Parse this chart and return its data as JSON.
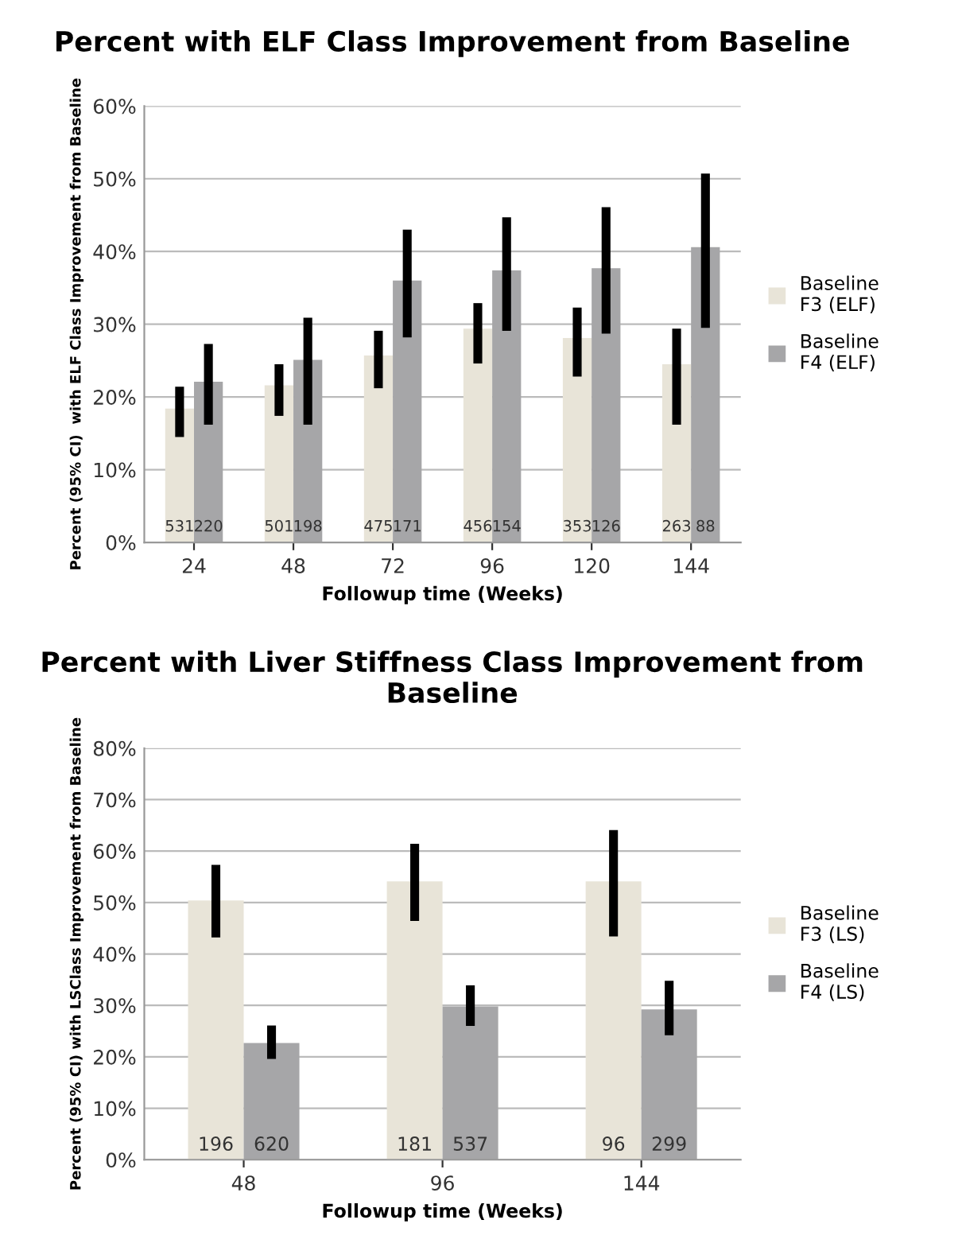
{
  "chart_data": [
    {
      "type": "bar",
      "title": "Percent with ELF Class Improvement from Baseline",
      "xlabel": "Followup time (Weeks)",
      "ylabel": "Percent (95% CI)  with ELF Class Improvement from Baseline",
      "categories": [
        "24",
        "48",
        "72",
        "96",
        "120",
        "144"
      ],
      "series": [
        {
          "name": "Baseline F3 (ELF)",
          "color": "#e8e4d8",
          "values": [
            18.4,
            21.6,
            25.7,
            29.4,
            28.1,
            24.5
          ],
          "errors": [
            [
              14.5,
              21.4
            ],
            [
              17.4,
              24.5
            ],
            [
              21.2,
              29.1
            ],
            [
              24.6,
              32.9
            ],
            [
              22.8,
              32.3
            ],
            [
              16.2,
              29.4
            ]
          ]
        },
        {
          "name": "Baseline F4 (ELF)",
          "color": "#a6a6a8",
          "values": [
            22.1,
            25.1,
            36.0,
            37.4,
            37.7,
            40.6
          ],
          "errors": [
            [
              16.2,
              27.3
            ],
            [
              16.2,
              30.9
            ],
            [
              28.2,
              43.0
            ],
            [
              29.1,
              44.7
            ],
            [
              28.7,
              46.1
            ],
            [
              29.5,
              50.7
            ]
          ]
        }
      ],
      "annotations": [
        "531",
        "220",
        "501",
        "198",
        "475",
        "171",
        "456",
        "154",
        "353",
        "126",
        "263",
        "88"
      ],
      "ylim": [
        0,
        60
      ],
      "yticks": [
        {
          "value": 0,
          "label": "0%"
        },
        {
          "value": 10,
          "label": "10%"
        },
        {
          "value": 20,
          "label": "20%"
        },
        {
          "value": 30,
          "label": "30%"
        },
        {
          "value": 40,
          "label": "40%"
        },
        {
          "value": 50,
          "label": "50%"
        },
        {
          "value": 60,
          "label": "60%"
        }
      ],
      "grid": "y",
      "legend": "right"
    },
    {
      "type": "bar",
      "title": "Percent with Liver Stiffness Class Improvement from Baseline",
      "xlabel": "Followup time (Weeks)",
      "ylabel": "Percent (95% CI) with LSClass Improvement from Baseline",
      "categories": [
        "48",
        "96",
        "144"
      ],
      "series": [
        {
          "name": "Baseline F3 (LS)",
          "color": "#e8e4d8",
          "values": [
            50.4,
            54.1,
            54.1
          ],
          "errors": [
            [
              43.2,
              57.3
            ],
            [
              46.4,
              61.4
            ],
            [
              43.4,
              64.1
            ]
          ]
        },
        {
          "name": "Baseline F4 (LS)",
          "color": "#a6a6a8",
          "values": [
            22.7,
            29.8,
            29.2
          ],
          "errors": [
            [
              19.6,
              26.1
            ],
            [
              26.0,
              33.9
            ],
            [
              24.2,
              34.8
            ]
          ]
        }
      ],
      "annotations": [
        "196",
        "620",
        "181",
        "537",
        "96",
        "299"
      ],
      "ylim": [
        0,
        80
      ],
      "yticks": [
        {
          "value": 0,
          "label": "0%"
        },
        {
          "value": 10,
          "label": "10%"
        },
        {
          "value": 20,
          "label": "20%"
        },
        {
          "value": 30,
          "label": "30%"
        },
        {
          "value": 40,
          "label": "40%"
        },
        {
          "value": 50,
          "label": "50%"
        },
        {
          "value": 60,
          "label": "60%"
        },
        {
          "value": 70,
          "label": "70%"
        },
        {
          "value": 80,
          "label": "80%"
        }
      ],
      "grid": "y",
      "legend": "right"
    }
  ]
}
